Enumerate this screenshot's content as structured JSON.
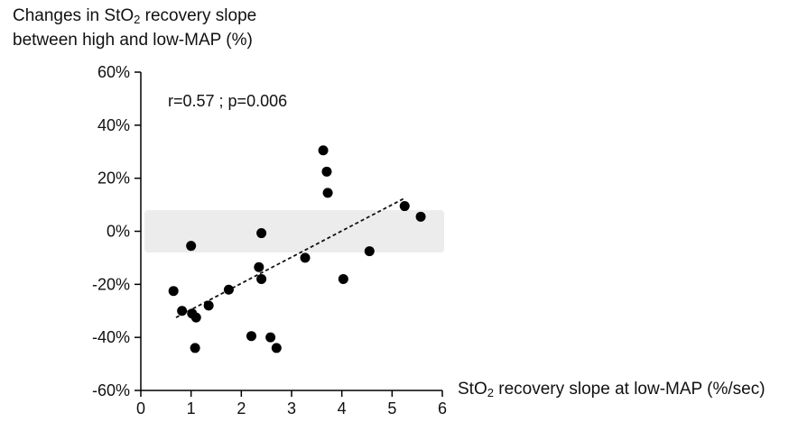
{
  "chart_data": {
    "type": "scatter",
    "ylabel": {
      "line1_prefix": "Changes in StO",
      "line1_sub": "2",
      "line1_suffix": " recovery slope",
      "line2": "between high and low-MAP (%)"
    },
    "xlabel": {
      "prefix": "StO",
      "sub": "2",
      "suffix": " recovery slope at low-MAP (%/sec)"
    },
    "annotation": "r=0.57 ; p=0.006",
    "xlim": [
      0,
      6
    ],
    "ylim": [
      -60,
      60
    ],
    "x_ticks": [
      0,
      1,
      2,
      3,
      4,
      5,
      6
    ],
    "x_tick_labels": [
      "0",
      "1",
      "2",
      "3",
      "4",
      "5",
      "6"
    ],
    "y_ticks": [
      60,
      40,
      20,
      0,
      -20,
      -40,
      -60
    ],
    "y_tick_labels": [
      "60%",
      "40%",
      "20%",
      "0%",
      "-20%",
      "-40%",
      "-60%"
    ],
    "reference_band": {
      "y_min": -8,
      "y_max": 8,
      "color": "#ececec"
    },
    "trend_line": {
      "x": [
        0.7,
        5.25
      ],
      "y": [
        -32.5,
        12.5
      ],
      "style": "dashed"
    },
    "points": [
      {
        "x": 0.65,
        "y": -22.5
      },
      {
        "x": 0.82,
        "y": -30
      },
      {
        "x": 1.0,
        "y": -5.5
      },
      {
        "x": 1.02,
        "y": -31
      },
      {
        "x": 1.1,
        "y": -32.5
      },
      {
        "x": 1.08,
        "y": -44
      },
      {
        "x": 1.35,
        "y": -28
      },
      {
        "x": 1.75,
        "y": -22
      },
      {
        "x": 2.2,
        "y": -39.5
      },
      {
        "x": 2.35,
        "y": -13.5
      },
      {
        "x": 2.4,
        "y": -0.7
      },
      {
        "x": 2.4,
        "y": -18
      },
      {
        "x": 2.58,
        "y": -40
      },
      {
        "x": 2.7,
        "y": -44
      },
      {
        "x": 3.27,
        "y": -10
      },
      {
        "x": 3.63,
        "y": 30.5
      },
      {
        "x": 3.7,
        "y": 22.5
      },
      {
        "x": 3.72,
        "y": 14.5
      },
      {
        "x": 4.03,
        "y": -18
      },
      {
        "x": 4.55,
        "y": -7.5
      },
      {
        "x": 5.25,
        "y": 9.5
      },
      {
        "x": 5.57,
        "y": 5.5
      }
    ],
    "colors": {
      "points": "#000000",
      "axis": "#000000"
    },
    "grid": false,
    "legend": "none"
  }
}
